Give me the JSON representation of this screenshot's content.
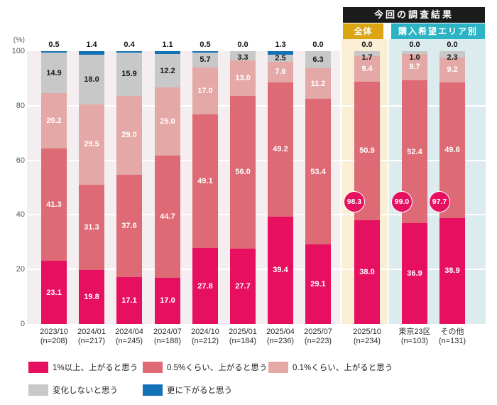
{
  "header": {
    "title": "今回の調査結果",
    "group_all": "全体",
    "group_area": "購入希望エリア別"
  },
  "y_axis": {
    "unit": "(%)"
  },
  "chart_data": {
    "type": "bar",
    "stacked": true,
    "orientation": "vertical",
    "ylim": [
      0,
      100
    ],
    "y_ticks": [
      100,
      80,
      60,
      40,
      20,
      0
    ],
    "grid_values": [
      20,
      40,
      60,
      80
    ],
    "grid_color": "#ffffff",
    "series": [
      {
        "key": "up_1pct",
        "label": "1%以上、上がると思う",
        "color": "#e60f60",
        "label_color": "#ffffff"
      },
      {
        "key": "up_0_5pct",
        "label": "0.5%くらい、上がると思う",
        "color": "#dd6a74",
        "label_color": "#ffffff"
      },
      {
        "key": "up_0_1pct",
        "label": "0.1%くらい、上がると思う",
        "color": "#e4a8a6",
        "label_color": "#ffffff"
      },
      {
        "key": "no_change",
        "label": "変化しないと思う",
        "color": "#c9c8c9",
        "label_color": "#1a1a1a"
      },
      {
        "key": "down",
        "label": "更に下がると思う",
        "color": "#1371b6",
        "label_color": "#111111"
      }
    ],
    "bars": [
      {
        "label": "2023/10",
        "n": "(n=208)",
        "values": [
          23.1,
          41.3,
          20.2,
          14.9,
          0.5
        ]
      },
      {
        "label": "2024/01",
        "n": "(n=217)",
        "values": [
          19.8,
          31.3,
          29.5,
          18.0,
          1.4
        ]
      },
      {
        "label": "2024/04",
        "n": "(n=245)",
        "values": [
          17.1,
          37.6,
          29.0,
          15.9,
          0.4
        ]
      },
      {
        "label": "2024/07",
        "n": "(n=188)",
        "values": [
          17.0,
          44.7,
          25.0,
          12.2,
          1.1
        ]
      },
      {
        "label": "2024/10",
        "n": "(n=212)",
        "values": [
          27.8,
          49.1,
          17.0,
          5.7,
          0.5
        ]
      },
      {
        "label": "2025/01",
        "n": "(n=184)",
        "values": [
          27.7,
          56.0,
          13.0,
          3.3,
          0.0
        ]
      },
      {
        "label": "2025/04",
        "n": "(n=236)",
        "values": [
          39.4,
          49.2,
          7.6,
          2.5,
          1.3
        ]
      },
      {
        "label": "2025/07",
        "n": "(n=223)",
        "values": [
          29.1,
          53.4,
          11.2,
          6.3,
          0.0
        ]
      },
      {
        "label": "2025/10",
        "n": "(n=234)",
        "values": [
          38.0,
          50.9,
          9.4,
          1.7,
          0.0
        ],
        "badge": 98.3,
        "band": "cream"
      },
      {
        "label": "東京23区",
        "n": "(n=103)",
        "values": [
          36.9,
          52.4,
          9.7,
          1.0,
          0.0
        ],
        "badge": 99.0,
        "band": "blue"
      },
      {
        "label": "その他",
        "n": "(n=131)",
        "values": [
          38.9,
          49.6,
          9.2,
          2.3,
          0.0
        ],
        "badge": 97.7,
        "band": "blue"
      }
    ]
  }
}
